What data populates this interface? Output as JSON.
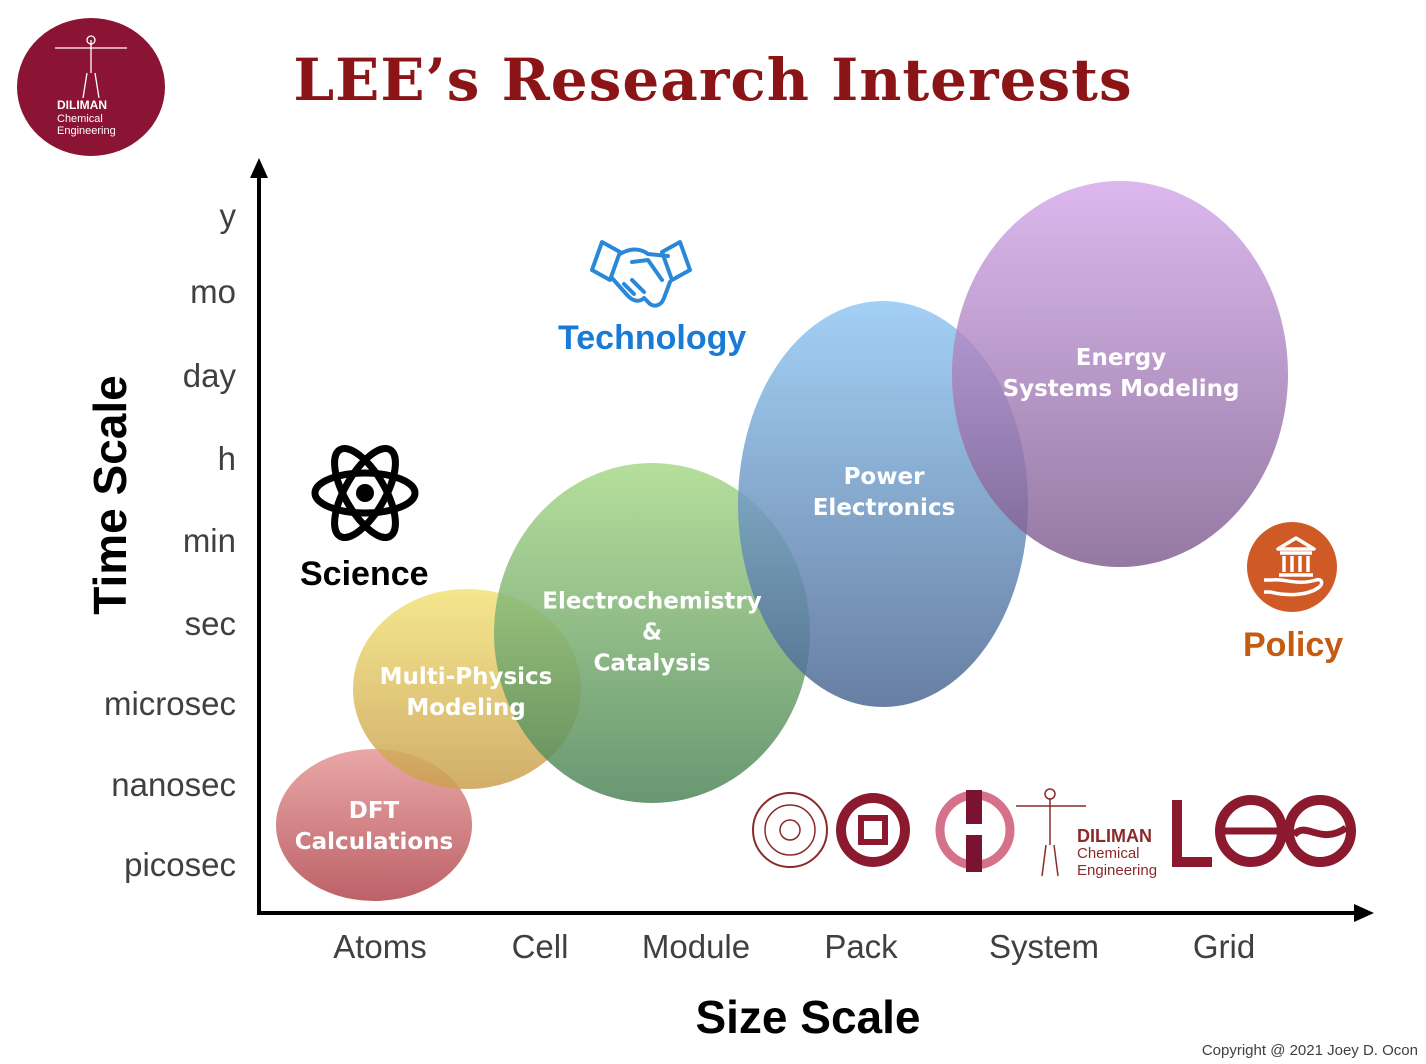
{
  "header": {
    "title": "LEE’s Research Interests",
    "logo_text_line1": "DILIMAN",
    "logo_text_line2": "Chemical",
    "logo_text_line3": "Engineering"
  },
  "axes": {
    "y_title": "Time Scale",
    "x_title": "Size Scale",
    "y_ticks": [
      "y",
      "mo",
      "day",
      "h",
      "min",
      "sec",
      "microsec",
      "nanosec",
      "picosec"
    ],
    "x_ticks": [
      "Atoms",
      "Cell",
      "Module",
      "Pack",
      "System",
      "Grid"
    ]
  },
  "categories": {
    "science": "Science",
    "technology": "Technology",
    "policy": "Policy"
  },
  "bubbles": [
    {
      "line1": "DFT",
      "line2": "Calculations",
      "line3": ""
    },
    {
      "line1": "Multi-Physics",
      "line2": "Modeling",
      "line3": ""
    },
    {
      "line1": "Electrochemistry",
      "line2": "&",
      "line3": "Catalysis"
    },
    {
      "line1": "Power",
      "line2": "Electronics",
      "line3": ""
    },
    {
      "line1": "Energy",
      "line2": "Systems Modeling",
      "line3": ""
    }
  ],
  "footer_logos": {
    "diliman": "DILIMAN",
    "chemical": "Chemical",
    "engineering": "Engineering"
  },
  "copyright": "Copyright @ 2021 Joey D. Ocon",
  "colors": {
    "title": "#8b1417",
    "technology": "#1a7bd6",
    "policy": "#c55a11",
    "logo_maroon": "#8b1333"
  }
}
